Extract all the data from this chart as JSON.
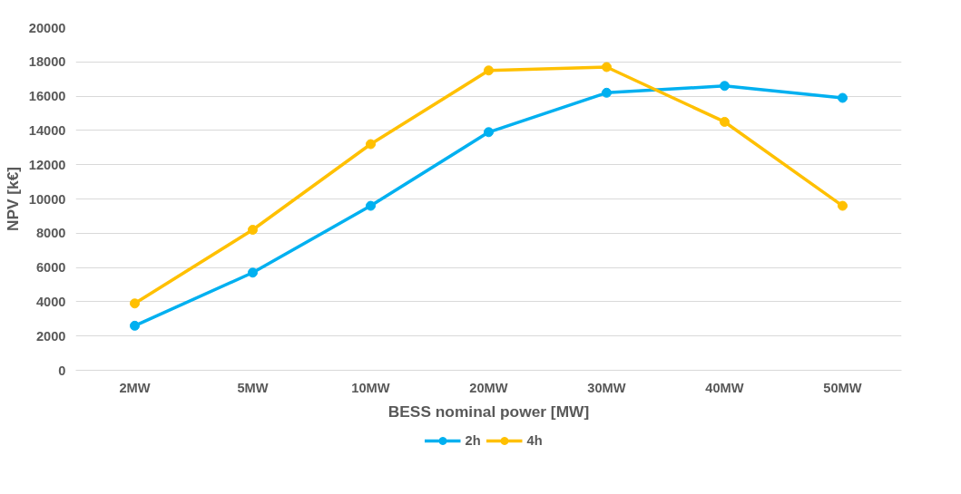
{
  "chart_data": {
    "type": "line",
    "xlabel": "BESS nominal power [MW]",
    "ylabel": "NPV [k€]",
    "categories": [
      "2MW",
      "5MW",
      "10MW",
      "20MW",
      "30MW",
      "40MW",
      "50MW"
    ],
    "series": [
      {
        "name": "2h",
        "color": "#00b0f0",
        "values": [
          2600,
          5700,
          9600,
          13900,
          16200,
          16600,
          15900
        ]
      },
      {
        "name": "4h",
        "color": "#ffc000",
        "values": [
          3900,
          8200,
          13200,
          17500,
          17700,
          14500,
          9600
        ]
      }
    ],
    "ylim": [
      0,
      20000
    ],
    "yticks": [
      0,
      2000,
      4000,
      6000,
      8000,
      10000,
      12000,
      14000,
      16000,
      18000,
      20000
    ],
    "grid": "y",
    "legend": "bottom",
    "marker": "circle",
    "line_style": "solid"
  }
}
